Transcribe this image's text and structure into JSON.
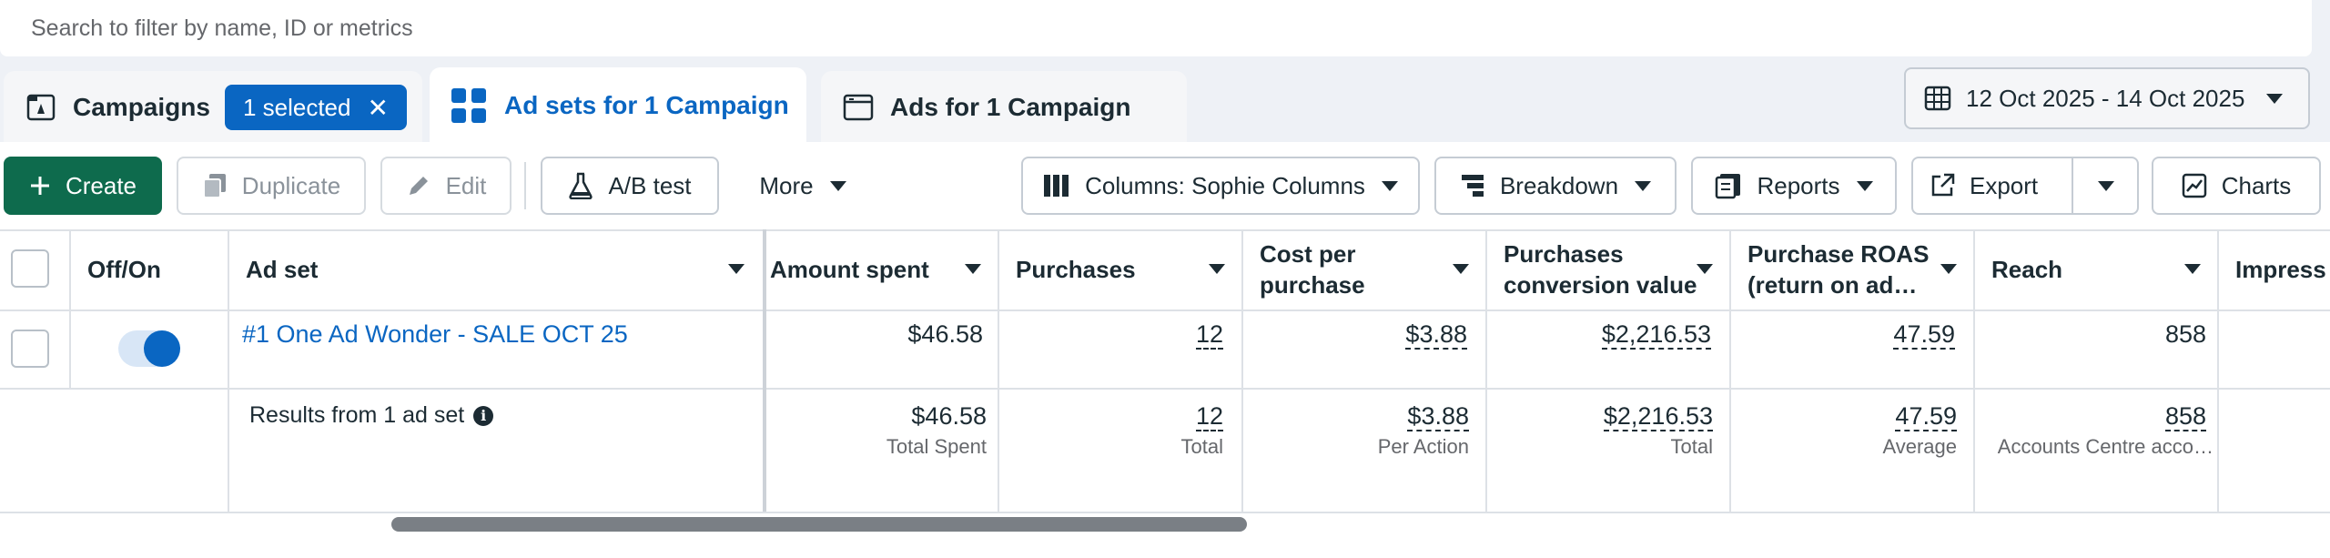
{
  "search": {
    "placeholder": "Search to filter by name, ID or metrics"
  },
  "tabs": {
    "campaigns": {
      "label": "Campaigns",
      "badge": "1 selected"
    },
    "adsets": {
      "label": "Ad sets for 1 Campaign"
    },
    "ads": {
      "label": "Ads for 1 Campaign"
    }
  },
  "date_range": "12 Oct 2025 - 14 Oct 2025",
  "toolbar": {
    "create": "Create",
    "duplicate": "Duplicate",
    "edit": "Edit",
    "ab_test": "A/B test",
    "more": "More",
    "columns": "Columns: Sophie Columns",
    "breakdown": "Breakdown",
    "reports": "Reports",
    "export": "Export",
    "charts": "Charts"
  },
  "table": {
    "headers": {
      "offon": "Off/On",
      "adset": "Ad set",
      "amount_spent": "Amount spent",
      "purchases": "Purchases",
      "cost_per_purchase_1": "Cost per",
      "cost_per_purchase_2": "purchase",
      "conv_value_1": "Purchases",
      "conv_value_2": "conversion value",
      "roas_1": "Purchase ROAS",
      "roas_2": "(return on ad…",
      "reach": "Reach",
      "impressions": "Impress"
    },
    "row": {
      "name": "#1 One Ad Wonder - SALE OCT 25",
      "amount_spent": "$46.58",
      "purchases": "12",
      "cost_per_purchase": "$3.88",
      "conv_value": "$2,216.53",
      "roas": "47.59",
      "reach": "858",
      "toggle_on": true
    },
    "summary": {
      "label": "Results from 1 ad set",
      "amount_spent": "$46.58",
      "amount_spent_sub": "Total Spent",
      "purchases": "12",
      "purchases_sub": "Total",
      "cost_per_purchase": "$3.88",
      "cost_per_purchase_sub": "Per Action",
      "conv_value": "$2,216.53",
      "conv_value_sub": "Total",
      "roas": "47.59",
      "roas_sub": "Average",
      "reach": "858",
      "reach_sub": "Accounts Centre acco…"
    }
  },
  "colors": {
    "primary_blue": "#0a66c2",
    "create_green": "#0e6b4d"
  }
}
